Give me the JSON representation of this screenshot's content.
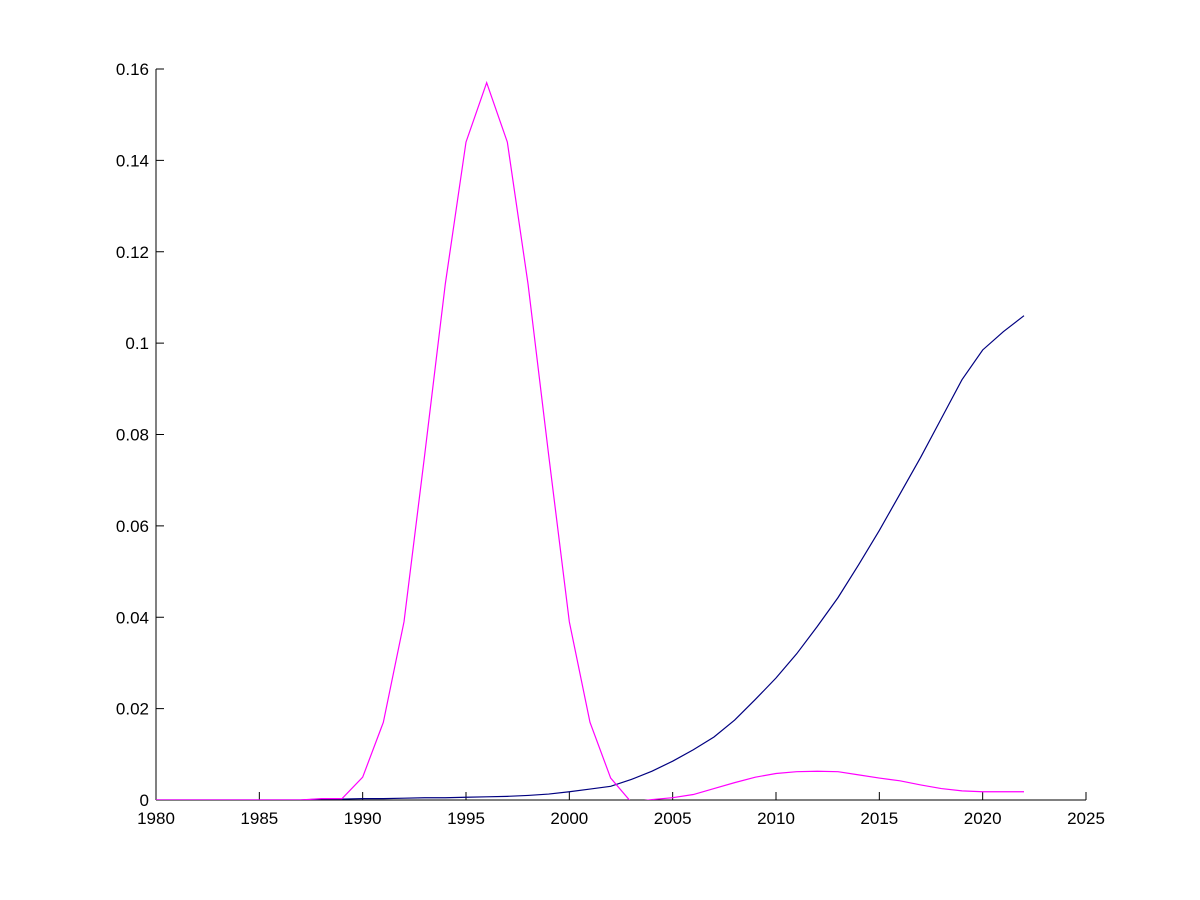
{
  "chart_data": {
    "type": "line",
    "x": [
      1980,
      1981,
      1982,
      1983,
      1984,
      1985,
      1986,
      1987,
      1988,
      1989,
      1990,
      1991,
      1992,
      1993,
      1994,
      1995,
      1996,
      1997,
      1998,
      1999,
      2000,
      2001,
      2002,
      2003,
      2004,
      2005,
      2006,
      2007,
      2008,
      2009,
      2010,
      2011,
      2012,
      2013,
      2014,
      2015,
      2016,
      2017,
      2018,
      2019,
      2020,
      2021,
      2022
    ],
    "series": [
      {
        "color": "#000080",
        "values": [
          0,
          0,
          0,
          0,
          0,
          0,
          0,
          0,
          0.0002,
          0.0002,
          0.0003,
          0.0003,
          0.0004,
          0.0005,
          0.0005,
          0.0006,
          0.0007,
          0.0008,
          0.001,
          0.0013,
          0.0018,
          0.0024,
          0.003,
          0.0045,
          0.0063,
          0.0085,
          0.011,
          0.0138,
          0.0175,
          0.022,
          0.0267,
          0.032,
          0.038,
          0.0443,
          0.0515,
          0.059,
          0.067,
          0.075,
          0.0835,
          0.092,
          0.0985,
          0.1025,
          0.106
        ]
      },
      {
        "color": "#ff00ff",
        "values": [
          0,
          0,
          0,
          0,
          0,
          0,
          0,
          0,
          0.0003,
          0.0003,
          0.005,
          0.017,
          0.039,
          0.0755,
          0.113,
          0.144,
          0.157,
          0.144,
          0.113,
          0.0755,
          0.039,
          0.017,
          0.0048,
          -0.0005,
          0.0001,
          0.0005,
          0.0012,
          0.0025,
          0.0038,
          0.005,
          0.0058,
          0.0062,
          0.0063,
          0.0062,
          0.0055,
          0.0048,
          0.0042,
          0.0033,
          0.0025,
          0.002,
          0.0018,
          0.0018,
          0.0018
        ]
      }
    ],
    "xlim": [
      1980,
      2025
    ],
    "xticks": [
      1980,
      1985,
      1990,
      1995,
      2000,
      2005,
      2010,
      2015,
      2020,
      2025
    ],
    "ylim": [
      0,
      0.16
    ],
    "yticks": [
      0,
      0.02,
      0.04,
      0.06,
      0.08,
      0.1,
      0.12,
      0.14,
      0.16
    ]
  }
}
